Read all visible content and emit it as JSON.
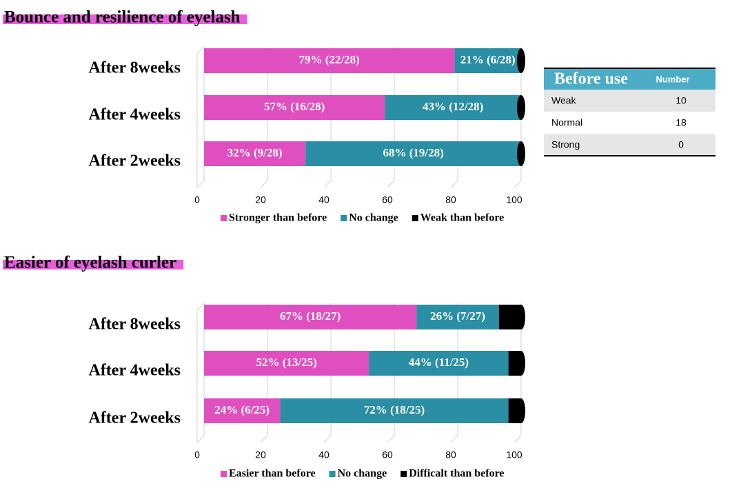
{
  "chart_data": [
    {
      "type": "bar",
      "stacked": true,
      "orientation": "horizontal",
      "title": "Bounce and resilience of eyelash",
      "categories": [
        "After 8weeks",
        "After 4weeks",
        "After 2weeks"
      ],
      "series": [
        {
          "name": "Stronger than before",
          "color": "#e04fbf",
          "values": [
            79,
            57,
            32
          ],
          "value_labels": [
            "79% (22/28)",
            "57% (16/28)",
            "32% (9/28)"
          ]
        },
        {
          "name": "No change",
          "color": "#2a8ea4",
          "values": [
            21,
            43,
            68
          ],
          "value_labels": [
            "21% (6/28)",
            "43% (12/28)",
            "68% (19/28)"
          ]
        },
        {
          "name": "Weak than before",
          "color": "#000000",
          "values": [
            0,
            0,
            0
          ]
        }
      ],
      "xlim": [
        0,
        100
      ],
      "xticks": [
        0,
        20,
        40,
        60,
        80,
        100
      ],
      "grid": true,
      "legend": "bottom"
    },
    {
      "type": "bar",
      "stacked": true,
      "orientation": "horizontal",
      "title": "Easier of eyelash curler",
      "categories": [
        "After 8weeks",
        "After 4weeks",
        "After 2weeks"
      ],
      "series": [
        {
          "name": "Easier than before",
          "color": "#e04fbf",
          "values": [
            67,
            52,
            24
          ],
          "value_labels": [
            "67% (18/27)",
            "52% (13/25)",
            "24% (6/25)"
          ]
        },
        {
          "name": "No change",
          "color": "#2a8ea4",
          "values": [
            26,
            44,
            72
          ],
          "value_labels": [
            "26% (7/27)",
            "44% (11/25)",
            "72% (18/25)"
          ]
        },
        {
          "name": "Difficalt than before",
          "color": "#000000",
          "values": [
            7,
            4,
            4
          ]
        }
      ],
      "xlim": [
        0,
        100
      ],
      "xticks": [
        0,
        20,
        40,
        60,
        80,
        100
      ],
      "grid": true,
      "legend": "bottom"
    }
  ],
  "table": {
    "header": [
      "Before use",
      "Number"
    ],
    "rows": [
      [
        "Weak",
        10
      ],
      [
        "Normal",
        18
      ],
      [
        "Strong",
        0
      ]
    ]
  }
}
